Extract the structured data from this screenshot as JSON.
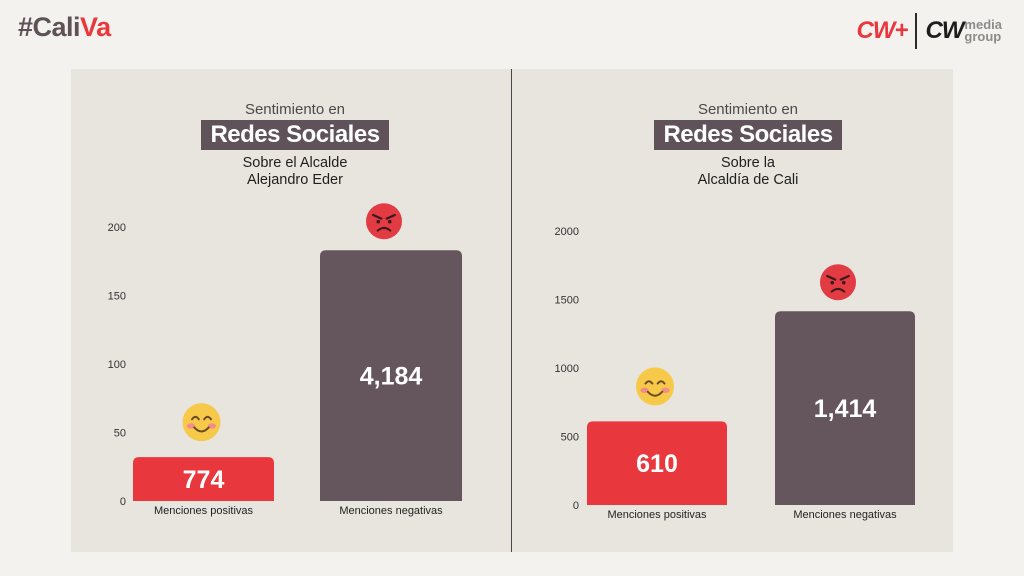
{
  "header": {
    "hashtag_part1": "#Cali",
    "hashtag_part2": "Va",
    "logo_left": "CW+",
    "logo_right_main": "CW",
    "logo_right_line1": "media",
    "logo_right_line2": "group"
  },
  "colors": {
    "accent_red": "#e8383d",
    "bar_dark": "#65555c",
    "badge_bg": "#5f5359",
    "panel_bg": "#e8e5df"
  },
  "chart_data": [
    {
      "type": "bar",
      "title_line1": "Sentimiento en",
      "title_badge": "Redes Sociales",
      "subtitle": [
        "Sobre el Alcalde",
        "Alejandro Eder"
      ],
      "categories": [
        "Menciones positivas",
        "Menciones negativas"
      ],
      "values": [
        774,
        4184
      ],
      "data_labels": [
        "774",
        "4,184"
      ],
      "axis_ticks": [
        0,
        50,
        100,
        150,
        200
      ],
      "ylim": [
        0,
        200
      ],
      "bar_scale_values": [
        32,
        183
      ],
      "bar_colors": [
        "#e8383d",
        "#65555c"
      ],
      "emojis": [
        "smiling-face-icon",
        "angry-face-icon"
      ]
    },
    {
      "type": "bar",
      "title_line1": "Sentimiento en",
      "title_badge": "Redes Sociales",
      "subtitle": [
        "Sobre la",
        "Alcaldía de Cali"
      ],
      "categories": [
        "Menciones positivas",
        "Menciones negativas"
      ],
      "values": [
        610,
        1414
      ],
      "data_labels": [
        "610",
        "1,414"
      ],
      "axis_ticks": [
        0,
        500,
        1000,
        1500,
        2000
      ],
      "ylim": [
        0,
        2000
      ],
      "bar_scale_values": [
        610,
        1414
      ],
      "bar_colors": [
        "#e8383d",
        "#65555c"
      ],
      "emojis": [
        "smiling-face-icon",
        "angry-face-icon"
      ]
    }
  ]
}
